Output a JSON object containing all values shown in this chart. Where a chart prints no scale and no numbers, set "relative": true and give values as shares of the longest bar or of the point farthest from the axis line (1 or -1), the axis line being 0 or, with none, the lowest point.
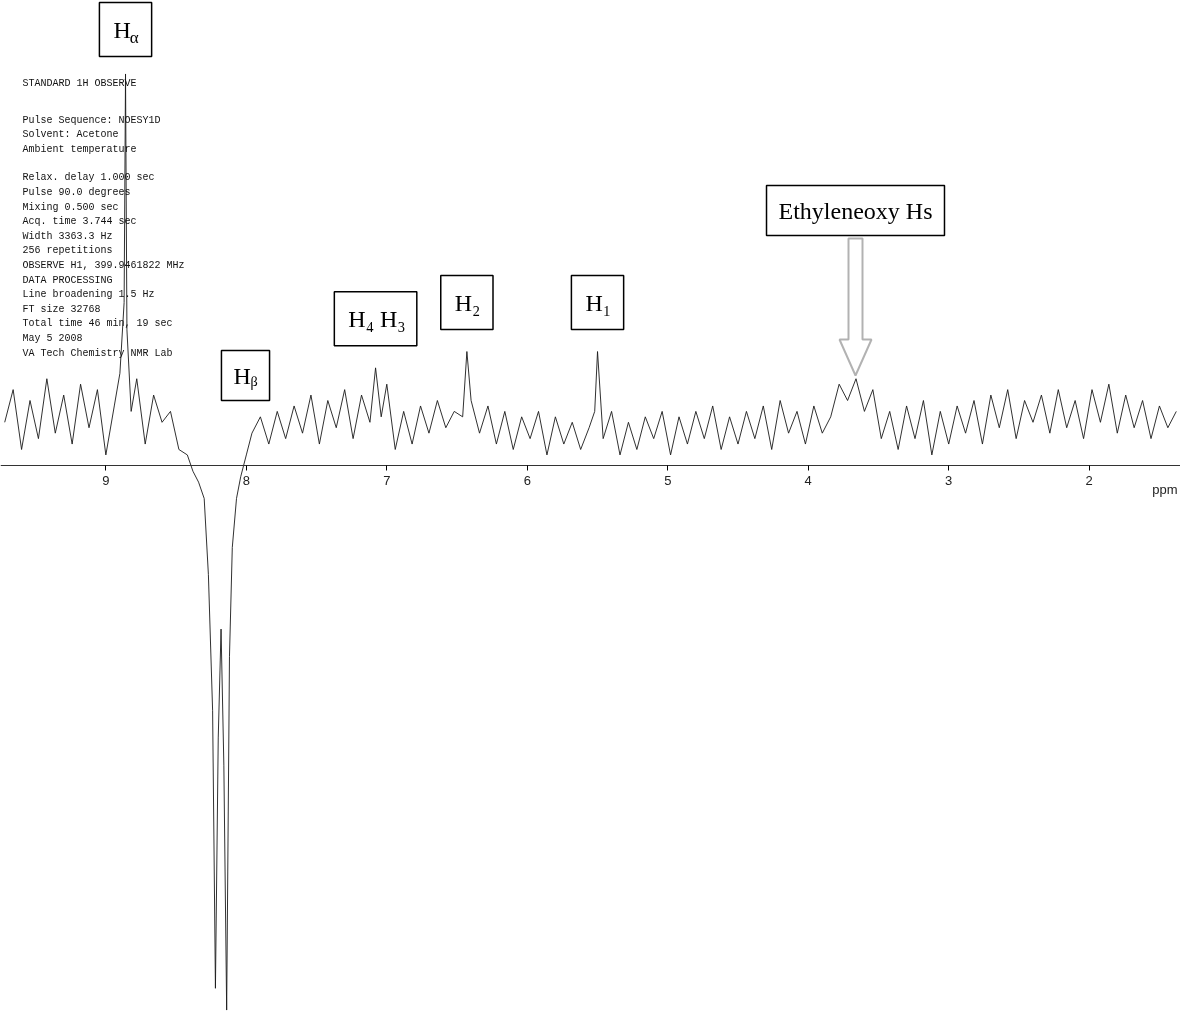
{
  "chart_data": {
    "type": "line",
    "relative": true,
    "xlabel": "ppm",
    "xlim": [
      9.75,
      1.35
    ],
    "xticks": [
      9,
      8,
      7,
      6,
      5,
      4,
      3,
      2
    ],
    "grid": false,
    "tick_labels": "x",
    "series": [
      {
        "color": "#1a1a1a",
        "x": [
          9.72,
          9.66,
          9.6,
          9.54,
          9.48,
          9.42,
          9.36,
          9.3,
          9.24,
          9.18,
          9.12,
          9.06,
          9.0,
          8.94,
          8.9,
          8.87,
          8.86,
          8.85,
          8.82,
          8.78,
          8.72,
          8.66,
          8.6,
          8.54,
          8.48,
          8.42,
          8.38,
          8.34,
          8.3,
          8.27,
          8.24,
          8.22,
          8.2,
          8.18,
          8.16,
          8.14,
          8.12,
          8.1,
          8.07,
          8.04,
          8.0,
          7.96,
          7.9,
          7.84,
          7.78,
          7.72,
          7.66,
          7.6,
          7.54,
          7.48,
          7.42,
          7.36,
          7.3,
          7.24,
          7.18,
          7.12,
          7.08,
          7.04,
          7.0,
          6.94,
          6.88,
          6.82,
          6.76,
          6.7,
          6.64,
          6.58,
          6.52,
          6.46,
          6.43,
          6.4,
          6.34,
          6.28,
          6.22,
          6.16,
          6.1,
          6.04,
          5.98,
          5.92,
          5.86,
          5.8,
          5.74,
          5.68,
          5.62,
          5.56,
          5.52,
          5.5,
          5.46,
          5.4,
          5.34,
          5.28,
          5.22,
          5.16,
          5.1,
          5.04,
          4.98,
          4.92,
          4.86,
          4.8,
          4.74,
          4.68,
          4.62,
          4.56,
          4.5,
          4.44,
          4.38,
          4.32,
          4.26,
          4.2,
          4.14,
          4.08,
          4.02,
          3.96,
          3.9,
          3.84,
          3.78,
          3.72,
          3.66,
          3.6,
          3.54,
          3.48,
          3.42,
          3.36,
          3.3,
          3.24,
          3.18,
          3.12,
          3.06,
          3.0,
          2.94,
          2.88,
          2.82,
          2.76,
          2.7,
          2.64,
          2.58,
          2.52,
          2.46,
          2.4,
          2.34,
          2.28,
          2.22,
          2.16,
          2.1,
          2.04,
          1.98,
          1.92,
          1.86,
          1.8,
          1.74,
          1.68,
          1.62,
          1.56,
          1.5,
          1.44,
          1.38
        ],
        "values": [
          0.08,
          0.14,
          0.03,
          0.12,
          0.05,
          0.16,
          0.06,
          0.13,
          0.04,
          0.15,
          0.07,
          0.14,
          0.02,
          0.11,
          0.17,
          0.3,
          0.72,
          0.25,
          0.1,
          0.16,
          0.04,
          0.13,
          0.08,
          0.1,
          0.03,
          0.02,
          -0.01,
          -0.03,
          -0.06,
          -0.2,
          -0.45,
          -0.96,
          -0.5,
          -0.3,
          -0.55,
          -1.0,
          -0.35,
          -0.15,
          -0.06,
          -0.02,
          0.02,
          0.06,
          0.09,
          0.04,
          0.1,
          0.05,
          0.11,
          0.06,
          0.13,
          0.04,
          0.12,
          0.07,
          0.14,
          0.05,
          0.13,
          0.08,
          0.18,
          0.09,
          0.15,
          0.03,
          0.1,
          0.04,
          0.11,
          0.06,
          0.12,
          0.07,
          0.1,
          0.09,
          0.21,
          0.12,
          0.06,
          0.11,
          0.04,
          0.1,
          0.03,
          0.09,
          0.05,
          0.1,
          0.02,
          0.09,
          0.04,
          0.08,
          0.03,
          0.07,
          0.1,
          0.21,
          0.05,
          0.1,
          0.02,
          0.08,
          0.03,
          0.09,
          0.05,
          0.1,
          0.02,
          0.09,
          0.04,
          0.1,
          0.05,
          0.11,
          0.03,
          0.09,
          0.04,
          0.1,
          0.05,
          0.11,
          0.03,
          0.12,
          0.06,
          0.1,
          0.04,
          0.11,
          0.06,
          0.09,
          0.15,
          0.12,
          0.16,
          0.1,
          0.14,
          0.05,
          0.1,
          0.03,
          0.11,
          0.05,
          0.12,
          0.02,
          0.1,
          0.04,
          0.11,
          0.06,
          0.12,
          0.04,
          0.13,
          0.07,
          0.14,
          0.05,
          0.12,
          0.08,
          0.13,
          0.06,
          0.14,
          0.07,
          0.12,
          0.05,
          0.14,
          0.08,
          0.15,
          0.06,
          0.13,
          0.07,
          0.12,
          0.05,
          0.11,
          0.07,
          0.1
        ]
      }
    ],
    "annotations": [
      {
        "text": "H$_{α}$",
        "x": 8.86,
        "y": 0.72
      },
      {
        "text": "H₄ H₃",
        "x": 7.08,
        "y": 0.18
      },
      {
        "text": "H₂",
        "x": 6.43,
        "y": 0.21
      },
      {
        "text": "H₁",
        "x": 5.5,
        "y": 0.21
      },
      "Hᵦ",
      "Ethyleneoxy Hs",
      "STANDARD 1H OBSERVE",
      "Pulse Sequence: NOESY1D",
      "Solvent: Acetone",
      "Ambient temperature",
      "Relax. delay 1.000 sec",
      "Pulse 90.0 degrees",
      "Mixing 0.500 sec",
      "Acq. time 3.744 sec",
      "Width 3363.3 Hz",
      "256 repetitions",
      "OBSERVE   H1, 399.9461822 MHz",
      "DATA PROCESSING",
      "Line broadening 1.5 Hz",
      "FT size 32768",
      "Total time 46 min, 19 sec",
      "May  5 2008",
      "VA Tech Chemistry NMR Lab"
    ]
  }
}
